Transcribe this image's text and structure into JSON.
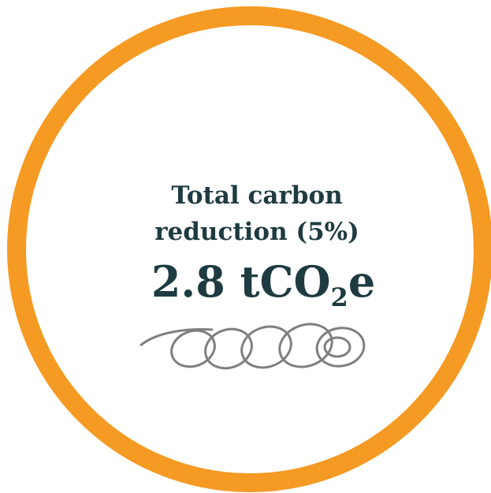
{
  "label": {
    "line1": "Total carbon",
    "line2": "reduction (5%)"
  },
  "figure": {
    "main": "2.8 tCO",
    "subscript": "2",
    "suffix": "e"
  }
}
